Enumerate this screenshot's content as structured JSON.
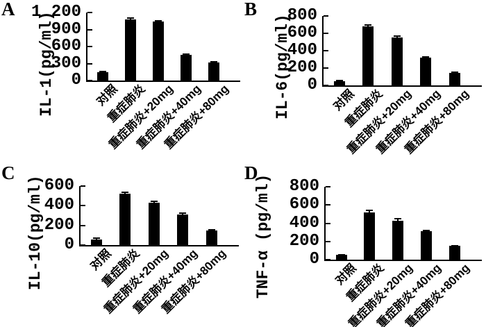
{
  "figure": {
    "background": "#ffffff",
    "bar_color": "#000000",
    "axis_color": "#000000",
    "text_color": "#000000"
  },
  "chart_data": [
    {
      "type": "bar",
      "panel_label": "A",
      "ylabel": "IL-1(pg/ml)",
      "xlabel": "",
      "ylim": [
        0,
        1200
      ],
      "ymax": 1200,
      "yticks": [
        0,
        300,
        600,
        900,
        1200
      ],
      "ytick_labels": [
        "0",
        "300",
        "600",
        "900",
        "1 200"
      ],
      "categories": [
        "对照",
        "重症肺炎",
        "重症肺炎+20mg",
        "重症肺炎+40mg",
        "重症肺炎+80mg"
      ],
      "values": [
        150,
        1080,
        1040,
        450,
        315
      ],
      "errors": [
        10,
        20,
        18,
        12,
        10
      ],
      "grid": false,
      "legend": "none"
    },
    {
      "type": "bar",
      "panel_label": "B",
      "ylabel": "IL-6(pg/ml)",
      "xlabel": "",
      "ylim": [
        0,
        800
      ],
      "ymax": 800,
      "yticks": [
        0,
        200,
        400,
        600,
        800
      ],
      "ytick_labels": [
        "0",
        "200",
        "400",
        "600",
        "800"
      ],
      "categories": [
        "对照",
        "重症肺炎",
        "重症肺炎+20mg",
        "重症肺炎+40mg",
        "重症肺炎+80mg"
      ],
      "values": [
        45,
        680,
        555,
        320,
        145
      ],
      "errors": [
        8,
        20,
        12,
        8,
        6
      ],
      "grid": false,
      "legend": "none"
    },
    {
      "type": "bar",
      "panel_label": "C",
      "ylabel": "IL-10(pg/ml)",
      "xlabel": "",
      "ylim": [
        0,
        600
      ],
      "ymax": 600,
      "yticks": [
        0,
        200,
        400,
        600
      ],
      "ytick_labels": [
        "0",
        "200",
        "400",
        "600"
      ],
      "categories": [
        "对照",
        "重症肺炎",
        "重症肺炎+20mg",
        "重症肺炎+40mg",
        "重症肺炎+80mg"
      ],
      "values": [
        60,
        520,
        430,
        310,
        150
      ],
      "errors": [
        8,
        15,
        18,
        12,
        5
      ],
      "grid": false,
      "legend": "none"
    },
    {
      "type": "bar",
      "panel_label": "D",
      "ylabel": "TNF-α (pg/ml)",
      "xlabel": "",
      "ylim": [
        0,
        800
      ],
      "ymax": 800,
      "yticks": [
        0,
        200,
        400,
        600,
        800
      ],
      "ytick_labels": [
        "0",
        "200",
        "400",
        "600",
        "800"
      ],
      "categories": [
        "对照",
        "重症肺炎",
        "重症肺炎+20mg",
        "重症肺炎+40mg",
        "重症肺炎+80mg"
      ],
      "values": [
        50,
        520,
        430,
        315,
        150
      ],
      "errors": [
        6,
        18,
        20,
        8,
        6
      ],
      "grid": false,
      "legend": "none"
    }
  ]
}
